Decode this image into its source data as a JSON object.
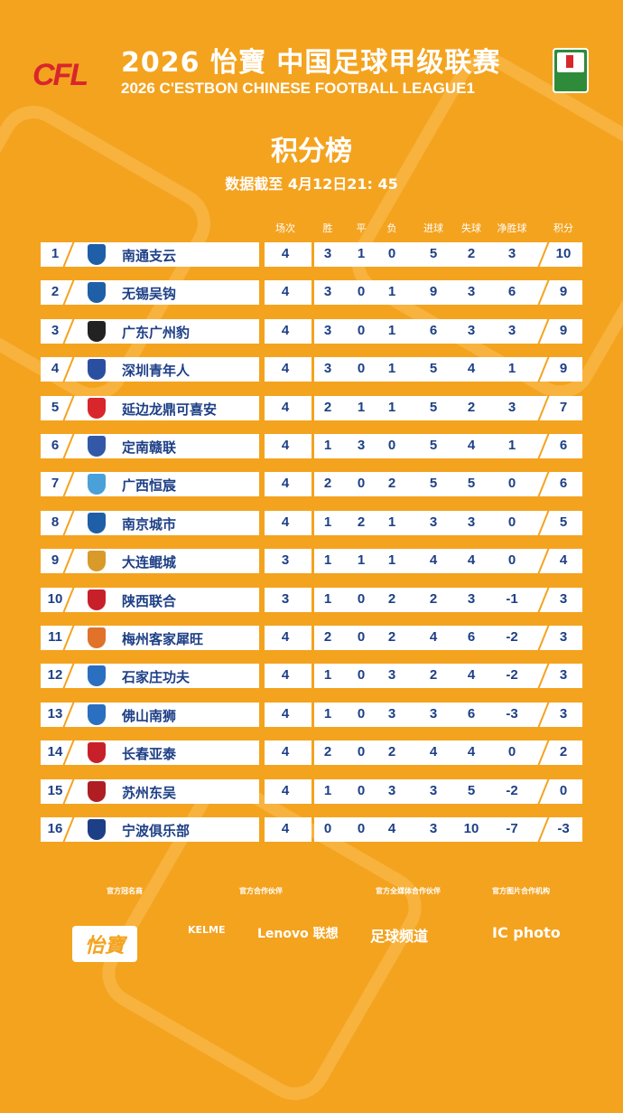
{
  "header": {
    "logo_text": "CFL",
    "title_cn": "2026 怡寶 中国足球甲级联赛",
    "title_en": "2026 C'ESTBON CHINESE FOOTBALL LEAGUE1",
    "heading": "积分榜",
    "updated": "数据截至 4月12日21: 45"
  },
  "columns": [
    "场次",
    "胜",
    "平",
    "负",
    "进球",
    "失球",
    "净胜球",
    "积分"
  ],
  "rows": [
    {
      "rank": "1",
      "team": "南通支云",
      "logo_color": "#1e5fa8",
      "stats": [
        "4",
        "3",
        "1",
        "0",
        "5",
        "2",
        "3",
        "10"
      ]
    },
    {
      "rank": "2",
      "team": "无锡吴钩",
      "logo_color": "#1e5fa8",
      "stats": [
        "4",
        "3",
        "0",
        "1",
        "9",
        "3",
        "6",
        "9"
      ]
    },
    {
      "rank": "3",
      "team": "广东广州豹",
      "logo_color": "#222222",
      "stats": [
        "4",
        "3",
        "0",
        "1",
        "6",
        "3",
        "3",
        "9"
      ]
    },
    {
      "rank": "4",
      "team": "深圳青年人",
      "logo_color": "#2b4fa0",
      "stats": [
        "4",
        "3",
        "0",
        "1",
        "5",
        "4",
        "1",
        "9"
      ]
    },
    {
      "rank": "5",
      "team": "延边龙鼎可喜安",
      "logo_color": "#d8262c",
      "stats": [
        "4",
        "2",
        "1",
        "1",
        "5",
        "2",
        "3",
        "7"
      ]
    },
    {
      "rank": "6",
      "team": "定南赣联",
      "logo_color": "#3358a8",
      "stats": [
        "4",
        "1",
        "3",
        "0",
        "5",
        "4",
        "1",
        "6"
      ]
    },
    {
      "rank": "7",
      "team": "广西恒宸",
      "logo_color": "#4aa0d8",
      "stats": [
        "4",
        "2",
        "0",
        "2",
        "5",
        "5",
        "0",
        "6"
      ]
    },
    {
      "rank": "8",
      "team": "南京城市",
      "logo_color": "#1e5fa8",
      "stats": [
        "4",
        "1",
        "2",
        "1",
        "3",
        "3",
        "0",
        "5"
      ]
    },
    {
      "rank": "9",
      "team": "大连鲲城",
      "logo_color": "#d99a2a",
      "stats": [
        "3",
        "1",
        "1",
        "1",
        "4",
        "4",
        "0",
        "4"
      ]
    },
    {
      "rank": "10",
      "team": "陕西联合",
      "logo_color": "#c8202a",
      "stats": [
        "3",
        "1",
        "0",
        "2",
        "2",
        "3",
        "-1",
        "3"
      ]
    },
    {
      "rank": "11",
      "team": "梅州客家犀旺",
      "logo_color": "#e0722a",
      "stats": [
        "4",
        "2",
        "0",
        "2",
        "4",
        "6",
        "-2",
        "3"
      ]
    },
    {
      "rank": "12",
      "team": "石家庄功夫",
      "logo_color": "#2b6fc0",
      "stats": [
        "4",
        "1",
        "0",
        "3",
        "2",
        "4",
        "-2",
        "3"
      ]
    },
    {
      "rank": "13",
      "team": "佛山南狮",
      "logo_color": "#2b6fc0",
      "stats": [
        "4",
        "1",
        "0",
        "3",
        "3",
        "6",
        "-3",
        "3"
      ]
    },
    {
      "rank": "14",
      "team": "长春亚泰",
      "logo_color": "#c8202a",
      "stats": [
        "4",
        "2",
        "0",
        "2",
        "4",
        "4",
        "0",
        "2"
      ]
    },
    {
      "rank": "15",
      "team": "苏州东吴",
      "logo_color": "#b01e24",
      "stats": [
        "4",
        "1",
        "0",
        "3",
        "3",
        "5",
        "-2",
        "0"
      ]
    },
    {
      "rank": "16",
      "team": "宁波俱乐部",
      "logo_color": "#1d3f86",
      "stats": [
        "4",
        "0",
        "0",
        "4",
        "3",
        "10",
        "-7",
        "-3"
      ]
    }
  ],
  "sponsors": {
    "titles": [
      "官方冠名商",
      "官方合作伙伴",
      "官方全媒体合作伙伴",
      "官方图片合作机构"
    ],
    "logos": [
      "怡寶",
      "KELME",
      "Lenovo 联想",
      "足球频道",
      "IC photo"
    ]
  },
  "colors": {
    "background": "#f4a31f",
    "text_dark": "#1d3f86",
    "accent_red": "#d8262c"
  }
}
